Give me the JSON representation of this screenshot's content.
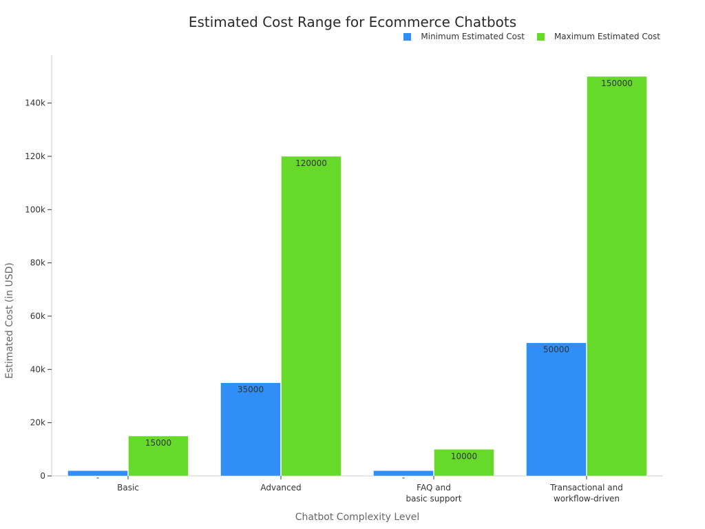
{
  "chart_data": {
    "type": "bar",
    "title": "Estimated Cost Range for Ecommerce Chatbots",
    "xlabel": "Chatbot Complexity Level",
    "ylabel": "Estimated Cost (in USD)",
    "categories": [
      [
        "Basic"
      ],
      [
        "Advanced"
      ],
      [
        "FAQ and",
        "basic support"
      ],
      [
        "Transactional and",
        "workflow-driven"
      ]
    ],
    "series": [
      {
        "name": "Minimum Estimated Cost",
        "color": "#2f8ff7",
        "values": [
          2000,
          35000,
          2000,
          50000
        ],
        "labels": [
          "-",
          "35000",
          "-",
          "50000"
        ]
      },
      {
        "name": "Maximum Estimated Cost",
        "color": "#66d92a",
        "values": [
          15000,
          120000,
          10000,
          150000
        ],
        "labels": [
          "15000",
          "120000",
          "10000",
          "150000"
        ]
      }
    ],
    "ylim": [
      0,
      158000
    ],
    "yticks": [
      0,
      20000,
      40000,
      60000,
      80000,
      100000,
      120000,
      140000
    ],
    "ytick_labels": [
      "0",
      "20k",
      "40k",
      "60k",
      "80k",
      "100k",
      "120k",
      "140k"
    ],
    "legend_position": "top-right",
    "grid": false
  }
}
